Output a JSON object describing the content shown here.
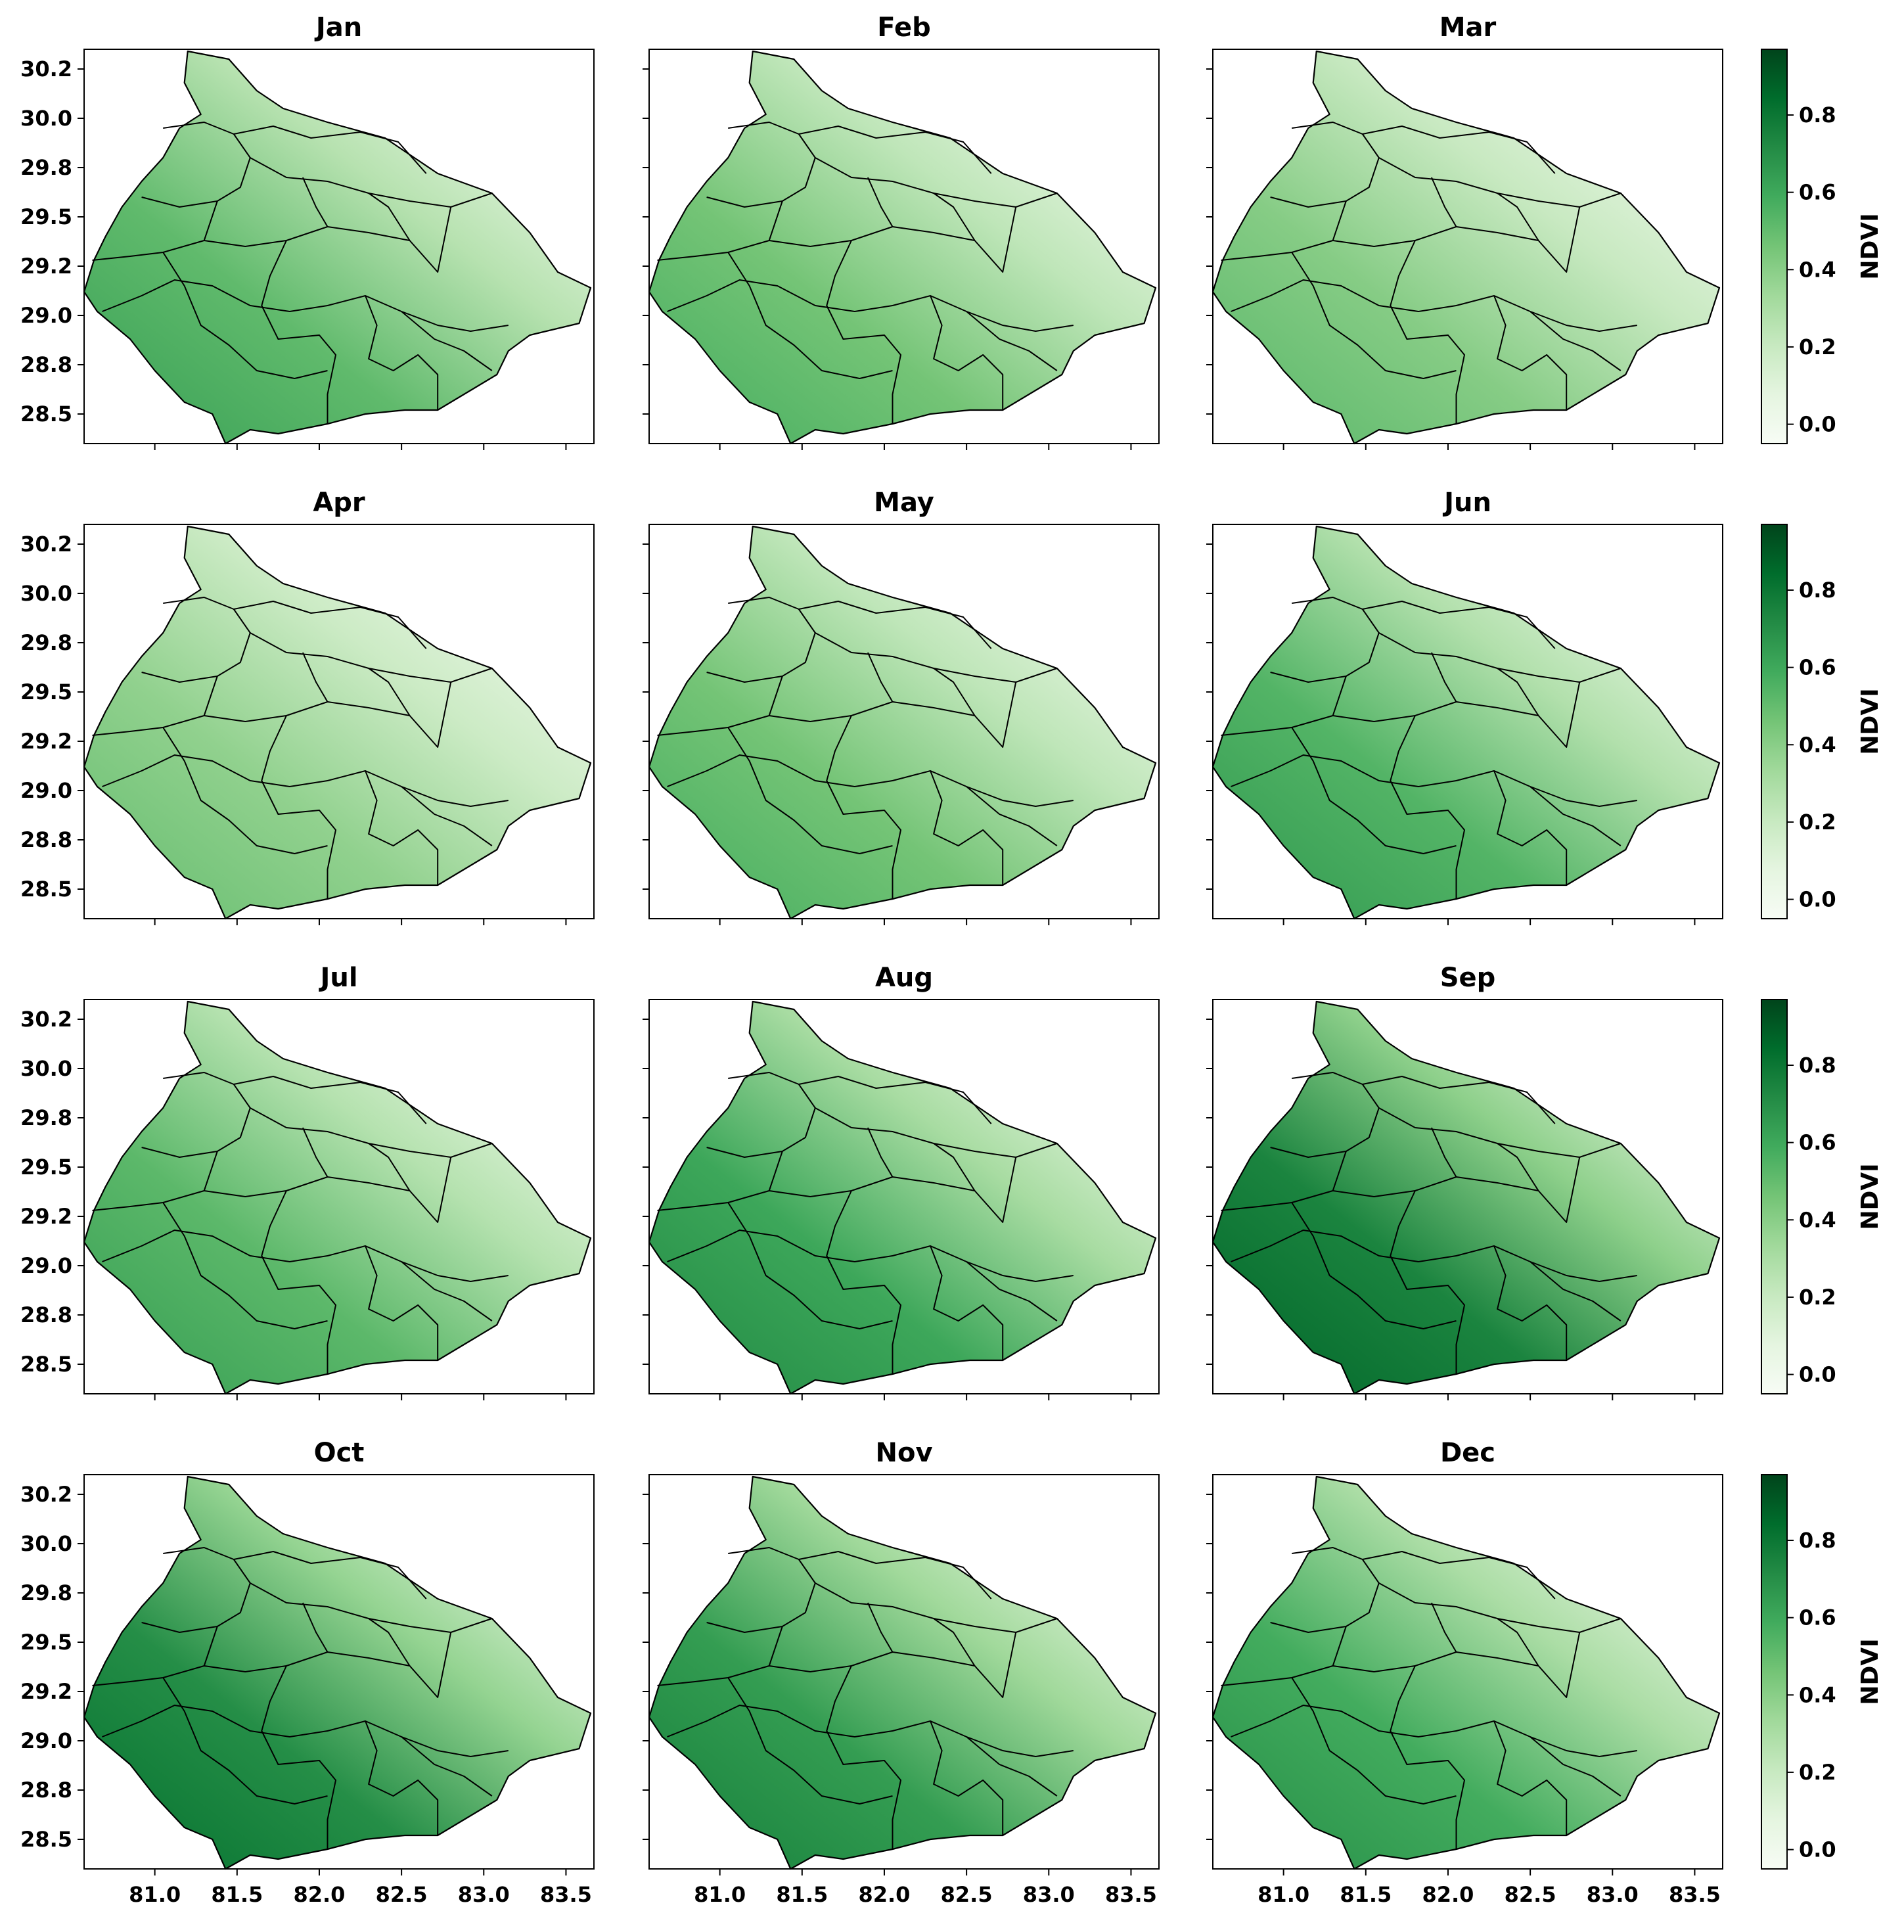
{
  "chart_data": {
    "type": "heatmap",
    "description_kind": "small-multiples map grid, 4 rows x 3 columns",
    "panels": [
      {
        "title": "Jan",
        "relative_greenness": 0.55
      },
      {
        "title": "Feb",
        "relative_greenness": 0.5
      },
      {
        "title": "Mar",
        "relative_greenness": 0.45
      },
      {
        "title": "Apr",
        "relative_greenness": 0.42
      },
      {
        "title": "May",
        "relative_greenness": 0.5
      },
      {
        "title": "Jun",
        "relative_greenness": 0.58
      },
      {
        "title": "Jul",
        "relative_greenness": 0.56
      },
      {
        "title": "Aug",
        "relative_greenness": 0.64
      },
      {
        "title": "Sep",
        "relative_greenness": 0.78
      },
      {
        "title": "Oct",
        "relative_greenness": 0.74
      },
      {
        "title": "Nov",
        "relative_greenness": 0.68
      },
      {
        "title": "Dec",
        "relative_greenness": 0.62
      }
    ],
    "xlim": [
      80.57,
      83.67
    ],
    "ylim": [
      28.35,
      30.35
    ],
    "xticks": [
      "81.0",
      "81.5",
      "82.0",
      "82.5",
      "83.0",
      "83.5"
    ],
    "xtick_values": [
      81.0,
      81.5,
      82.0,
      82.5,
      83.0,
      83.5
    ],
    "yticks": [
      "28.5",
      "28.8",
      "29.0",
      "29.2",
      "29.5",
      "29.8",
      "30.0",
      "30.2"
    ],
    "ytick_values": [
      28.5,
      28.75,
      29.0,
      29.25,
      29.5,
      29.75,
      30.0,
      30.25
    ],
    "colorbar": {
      "label": "NDVI",
      "range": [
        -0.05,
        0.97
      ],
      "ticks": [
        "0.0",
        "0.2",
        "0.4",
        "0.6",
        "0.8"
      ],
      "tick_values": [
        0.0,
        0.2,
        0.4,
        0.6,
        0.8
      ],
      "colormap": "Greens",
      "color_low": "#f7fcf5",
      "color_high": "#00441b"
    },
    "boundary_color": "#000000",
    "grid": false
  }
}
